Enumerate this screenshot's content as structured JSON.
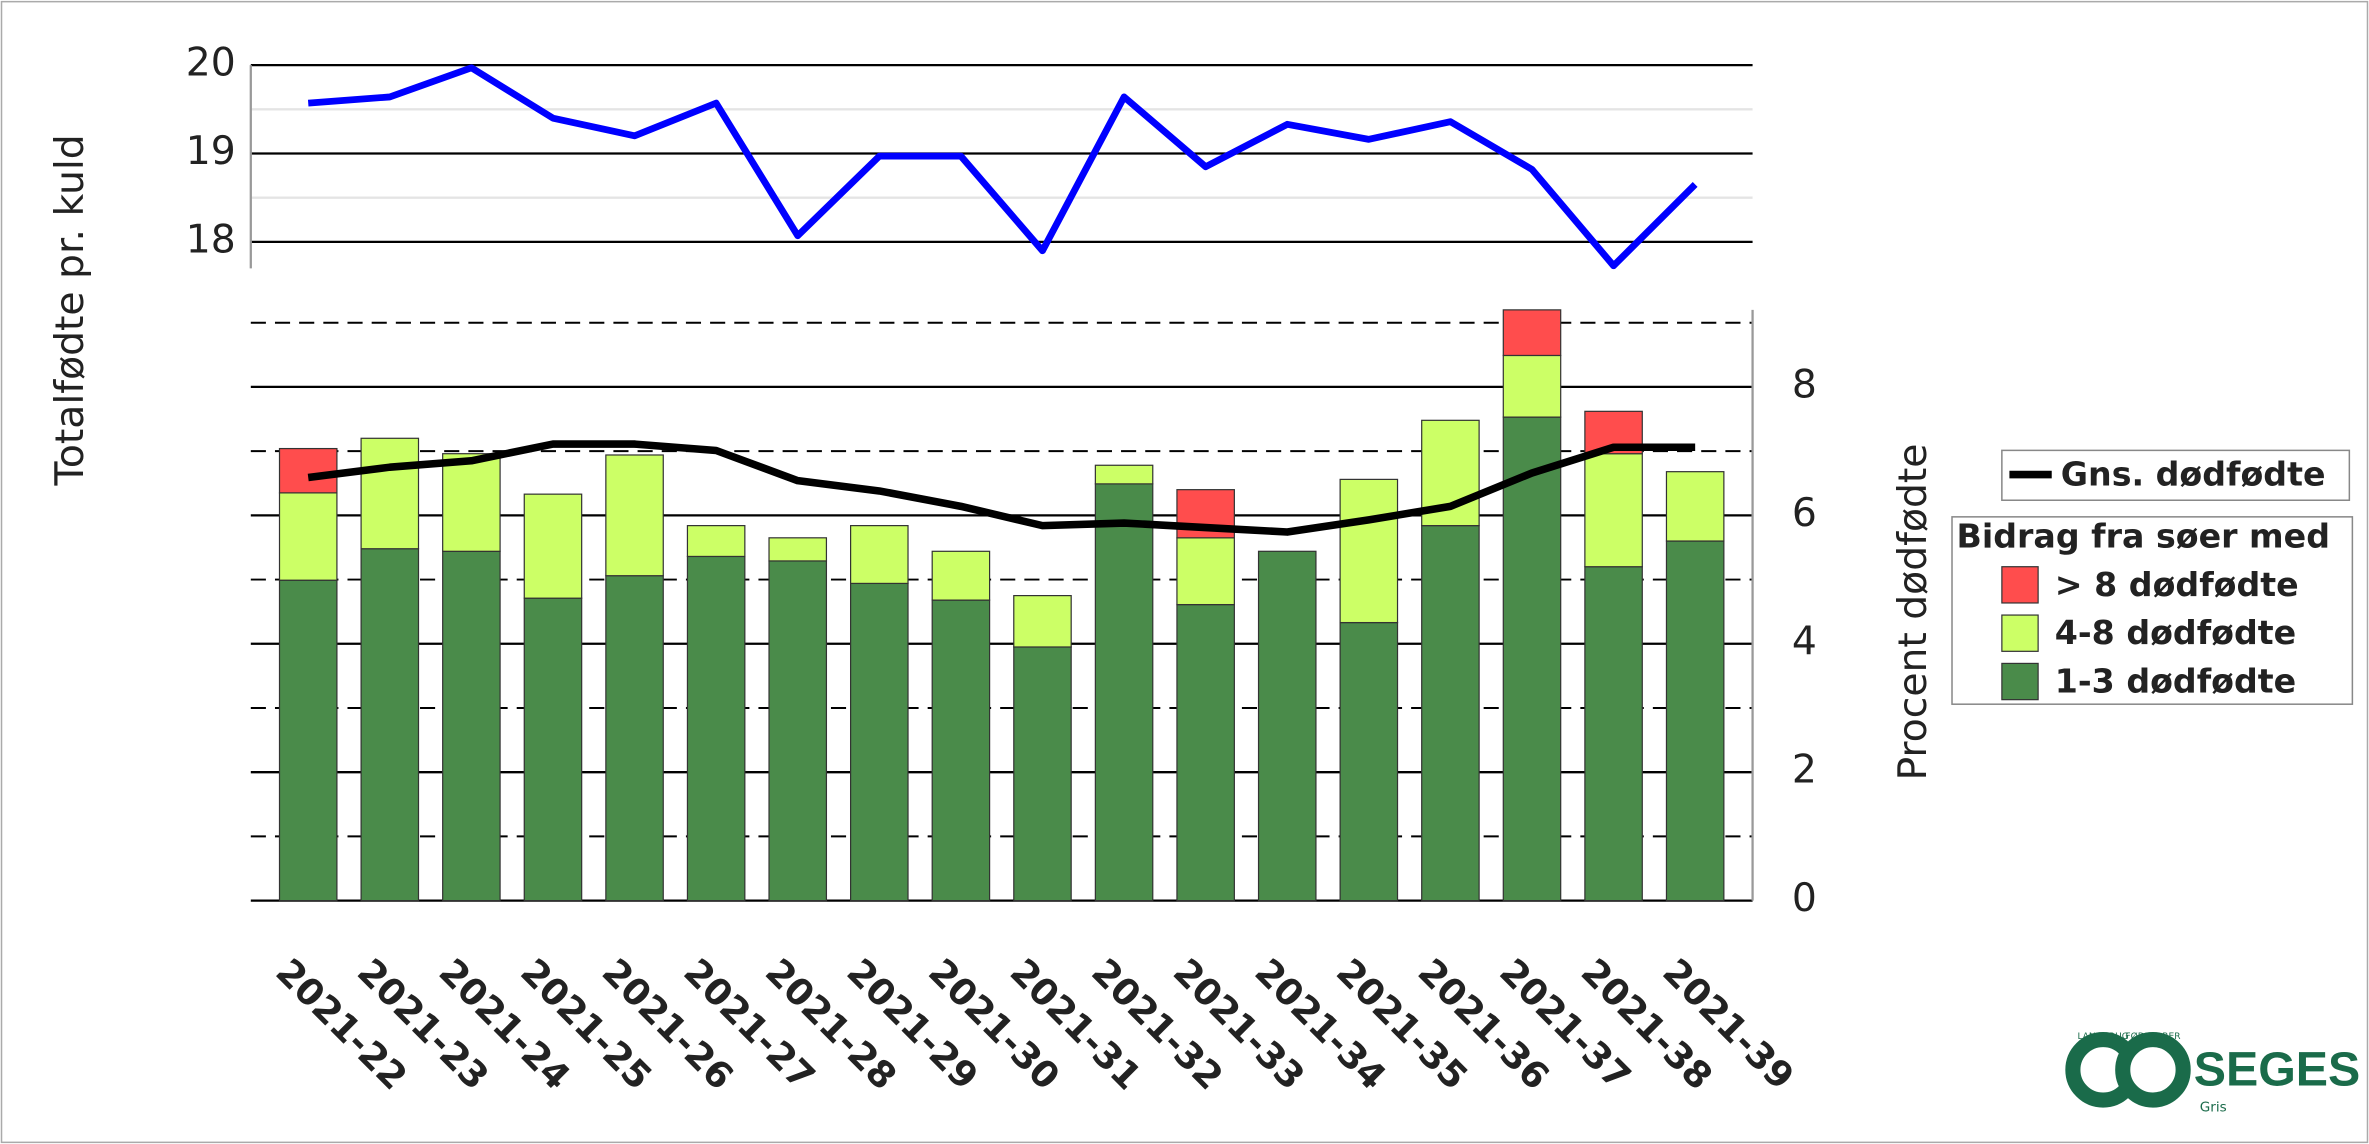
{
  "chart_data": [
    {
      "type": "line",
      "y_label": "Totalfødte pr. kuld",
      "series": [
        {
          "color": "#0000ff",
          "values": [
            19.57,
            19.64,
            19.97,
            19.4,
            19.2,
            19.57,
            18.07,
            18.97,
            18.97,
            17.9,
            19.64,
            18.85,
            19.33,
            19.16,
            19.36,
            18.82,
            17.73,
            18.65
          ]
        }
      ],
      "ylim": [
        17.7,
        20
      ],
      "yticks": [
        18,
        19,
        20
      ],
      "minor_gridlines": [
        18.5,
        19.5
      ],
      "grid": true
    },
    {
      "type": "bar",
      "stacked": true,
      "y_label": "Procent dødfødte",
      "y_axis_side": "right",
      "categories": [
        "2021-22",
        "2021-23",
        "2021-24",
        "2021-25",
        "2021-26",
        "2021-27",
        "2021-28",
        "2021-29",
        "2021-30",
        "2021-31",
        "2021-32",
        "2021-33",
        "2021-34",
        "2021-35",
        "2021-36",
        "2021-37",
        "2021-38",
        "2021-39"
      ],
      "legend_title": "Bidrag fra søer med",
      "series": [
        {
          "name": "1-3 dødfødte",
          "color": "#4a8b4a",
          "values": [
            4.99,
            5.48,
            5.44,
            4.71,
            5.06,
            5.36,
            5.29,
            4.94,
            4.68,
            3.95,
            6.49,
            4.61,
            5.44,
            4.33,
            5.84,
            7.53,
            5.2,
            5.6
          ]
        },
        {
          "name": "4-8 dødfødte",
          "color": "#ccff66",
          "values": [
            1.36,
            1.72,
            1.52,
            1.62,
            1.88,
            0.48,
            0.36,
            0.9,
            0.76,
            0.8,
            0.29,
            1.04,
            0,
            2.23,
            1.64,
            0.96,
            1.76,
            1.08
          ]
        },
        {
          "name": "> 8 dødfødte",
          "color": "#ff4d4d",
          "values": [
            0.69,
            0,
            0,
            0,
            0,
            0,
            0,
            0,
            0,
            0,
            0,
            0.75,
            0,
            0,
            0,
            0.71,
            0.66,
            0
          ]
        }
      ],
      "line_series": {
        "name": "Gns. dødfødte",
        "color": "#000000",
        "values": [
          6.59,
          6.75,
          6.85,
          7.11,
          7.11,
          7.01,
          6.54,
          6.38,
          6.14,
          5.84,
          5.88,
          5.81,
          5.74,
          5.93,
          6.14,
          6.66,
          7.06,
          7.06
        ]
      },
      "ylim": [
        0,
        9.2
      ],
      "yticks": [
        0,
        2,
        4,
        6,
        8
      ],
      "minor_gridlines": [
        1,
        3,
        5,
        7,
        9
      ],
      "grid": true
    }
  ],
  "logo": {
    "name": "SEGES",
    "sub": "Gris",
    "ring_left": "LANDBRUG",
    "ring_right": "FØDEVARER"
  }
}
